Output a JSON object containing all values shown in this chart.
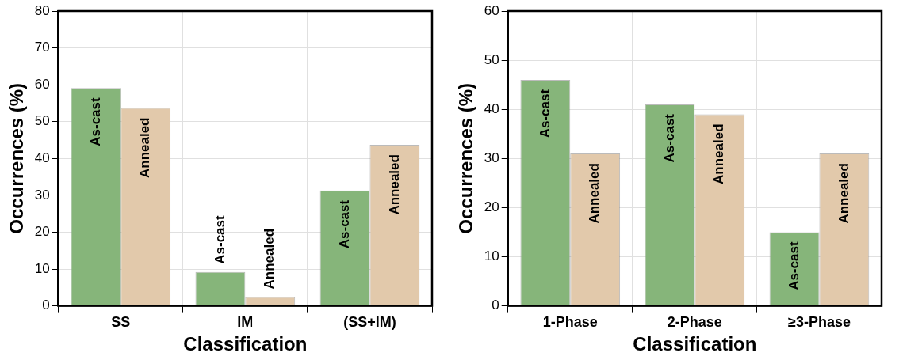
{
  "chart_data": [
    {
      "type": "bar",
      "xlabel": "Classification",
      "ylabel": "Occurrences (%)",
      "categories": [
        "SS",
        "IM",
        "(SS+IM)"
      ],
      "series": [
        {
          "name": "As-cast",
          "color": "#86b57a",
          "values": [
            59.1,
            9.2,
            31.3
          ]
        },
        {
          "name": "Annealed",
          "color": "#e2c9ab",
          "values": [
            53.7,
            2.4,
            43.7
          ]
        }
      ],
      "ylim": [
        0,
        80
      ],
      "yticks": [
        0,
        10,
        20,
        30,
        40,
        50,
        60,
        70,
        80
      ],
      "grid": true,
      "legend": false
    },
    {
      "type": "bar",
      "xlabel": "Classification",
      "ylabel": "Occurrences (%)",
      "categories": [
        "1-Phase",
        "2-Phase",
        "≥3-Phase"
      ],
      "series": [
        {
          "name": "As-cast",
          "color": "#86b57a",
          "values": [
            46,
            41,
            15
          ]
        },
        {
          "name": "Annealed",
          "color": "#e2c9ab",
          "values": [
            31,
            39,
            31
          ]
        }
      ],
      "ylim": [
        0,
        60
      ],
      "yticks": [
        0,
        10,
        20,
        30,
        40,
        50,
        60
      ],
      "grid": true,
      "legend": false
    }
  ]
}
